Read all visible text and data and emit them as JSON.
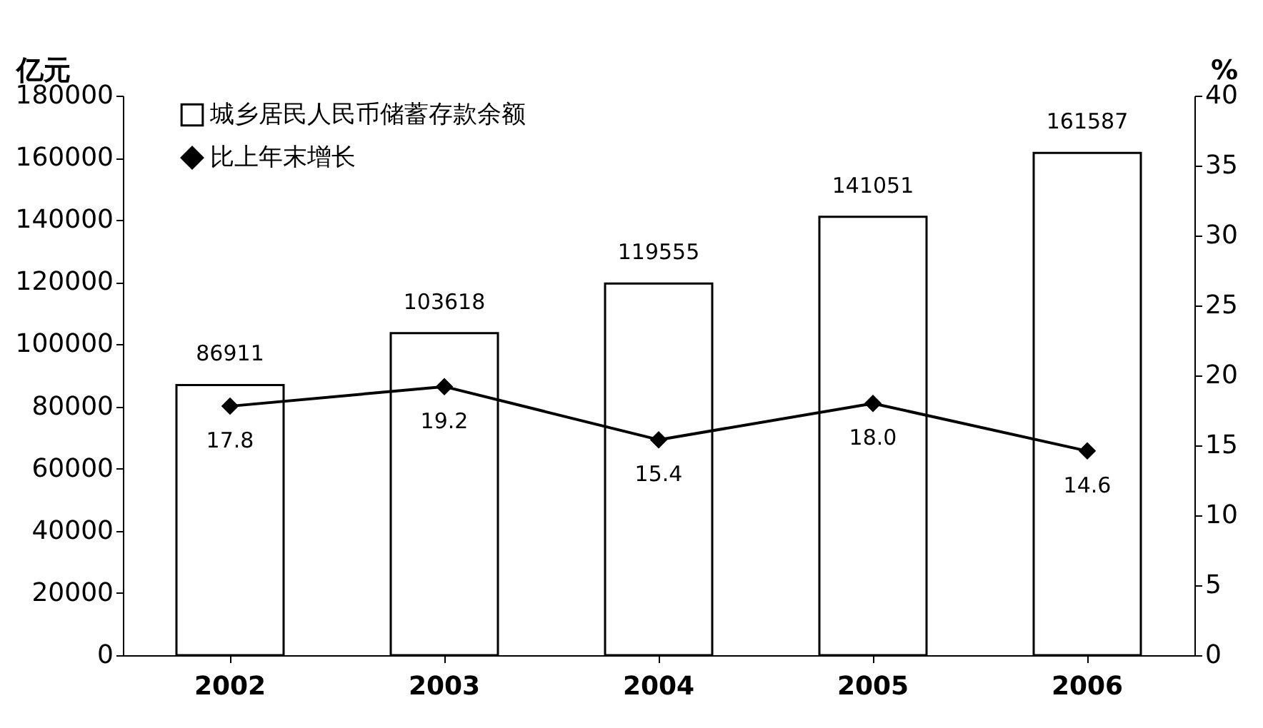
{
  "chart_data": {
    "type": "bar",
    "categories": [
      "2002",
      "2003",
      "2004",
      "2005",
      "2006"
    ],
    "ylabel": "亿元",
    "y2label": "%",
    "ylim": [
      0,
      180000
    ],
    "yticks": [
      0,
      20000,
      40000,
      60000,
      80000,
      100000,
      120000,
      140000,
      160000,
      180000
    ],
    "y2lim": [
      0,
      40
    ],
    "y2ticks": [
      0,
      5,
      10,
      15,
      20,
      25,
      30,
      35,
      40
    ],
    "legend": "top left",
    "marker": "diamond",
    "grid": false,
    "series": [
      {
        "name": "城乡居民人民币储蓄存款余额",
        "color": "#ffffff",
        "values": [
          86911,
          103618,
          119555,
          141051,
          161587
        ],
        "value_labels": [
          "86911",
          "103618",
          "119555",
          "141051",
          "161587"
        ]
      },
      {
        "name": "比上年末增长",
        "type": "line",
        "axis": "y2",
        "color": "#000000",
        "values": [
          17.8,
          19.2,
          15.4,
          18.0,
          14.6
        ],
        "value_labels": [
          "17.8",
          "19.2",
          "15.4",
          "18.0",
          "14.6"
        ]
      }
    ]
  }
}
